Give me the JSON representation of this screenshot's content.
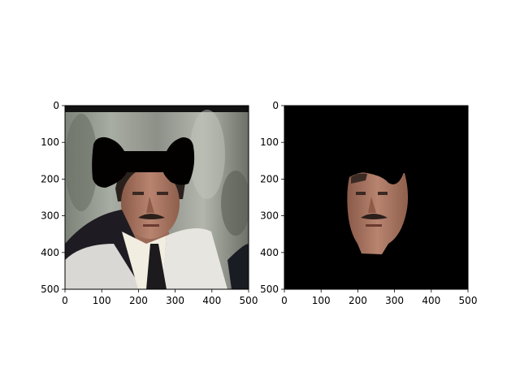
{
  "chart_data": [
    {
      "type": "image",
      "panel": "left",
      "xlim": [
        0,
        500
      ],
      "ylim": [
        500,
        0
      ],
      "xticks": [
        0,
        100,
        200,
        300,
        400,
        500
      ],
      "yticks": [
        0,
        100,
        200,
        300,
        400,
        500
      ],
      "xtick_labels": [
        "0",
        "100",
        "200",
        "300",
        "400",
        "500"
      ],
      "ytick_labels": [
        "0",
        "100",
        "200",
        "300",
        "400",
        "500"
      ],
      "content": "photo of a man with a black bow-tie shaped mask over the upper face",
      "mask_shape": "bow-tie",
      "colors": {
        "mask": "#000000"
      }
    },
    {
      "type": "image",
      "panel": "right",
      "xlim": [
        0,
        500
      ],
      "ylim": [
        500,
        0
      ],
      "xticks": [
        0,
        100,
        200,
        300,
        400,
        500
      ],
      "yticks": [
        0,
        100,
        200,
        300,
        400,
        500
      ],
      "xtick_labels": [
        "0",
        "100",
        "200",
        "300",
        "400",
        "500"
      ],
      "ytick_labels": [
        "0",
        "100",
        "200",
        "300",
        "400",
        "500"
      ],
      "content": "segmented face region on a black background",
      "colors": {
        "background": "#000000"
      }
    }
  ]
}
